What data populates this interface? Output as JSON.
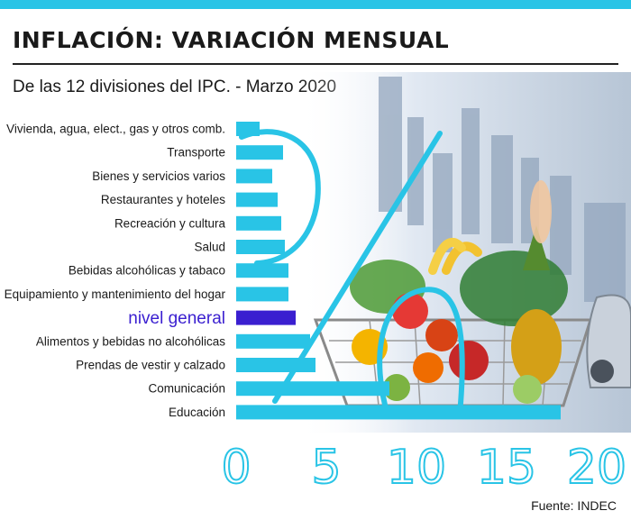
{
  "title": "INFLACIÓN: VARIACIÓN MENSUAL",
  "subtitle": "De las 12 divisiones del IPC. - Marzo 2020",
  "source": "Fuente: INDEC",
  "colors": {
    "bar": "#29c4e6",
    "highlight": "#3a1fd0",
    "text": "#1a1a1a"
  },
  "chart_data": {
    "type": "bar",
    "orientation": "horizontal",
    "categories": [
      "Vivienda, agua, elect., gas y otros comb.",
      "Transporte",
      "Bienes y servicios varios",
      "Restaurantes y  hoteles",
      "Recreación y cultura",
      "Salud",
      "Bebidas alcohólicas y tabaco",
      "Equipamiento y mantenimiento del hogar",
      "nivel general",
      "Alimentos y bebidas no alcohólicas",
      "Prendas de vestir y calzado",
      "Comunicación",
      "Educación"
    ],
    "values": [
      1.3,
      2.6,
      2.0,
      2.3,
      2.5,
      2.7,
      2.9,
      2.9,
      3.3,
      4.1,
      4.4,
      8.5,
      18.0
    ],
    "highlight": "nivel general",
    "xlim": [
      0,
      20
    ],
    "xticks": [
      "0",
      "5",
      "10",
      "15",
      "20"
    ],
    "grid": false
  }
}
